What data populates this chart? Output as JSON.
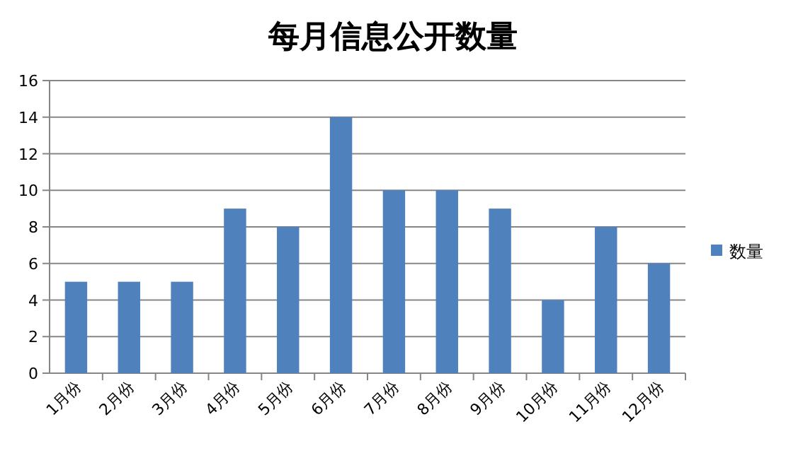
{
  "chart_data": {
    "type": "bar",
    "title": "每月信息公开数量",
    "categories": [
      "1月份",
      "2月份",
      "3月份",
      "4月份",
      "5月份",
      "6月份",
      "7月份",
      "8月份",
      "9月份",
      "10月份",
      "11月份",
      "12月份"
    ],
    "series": [
      {
        "name": "数量",
        "color": "#4f81bd",
        "values": [
          5,
          5,
          5,
          9,
          8,
          14,
          10,
          10,
          9,
          4,
          8,
          6
        ]
      }
    ],
    "ylim": [
      0,
      16
    ],
    "yticks": [
      0,
      2,
      4,
      6,
      8,
      10,
      12,
      14,
      16
    ],
    "grid": "y",
    "legend": "right"
  }
}
